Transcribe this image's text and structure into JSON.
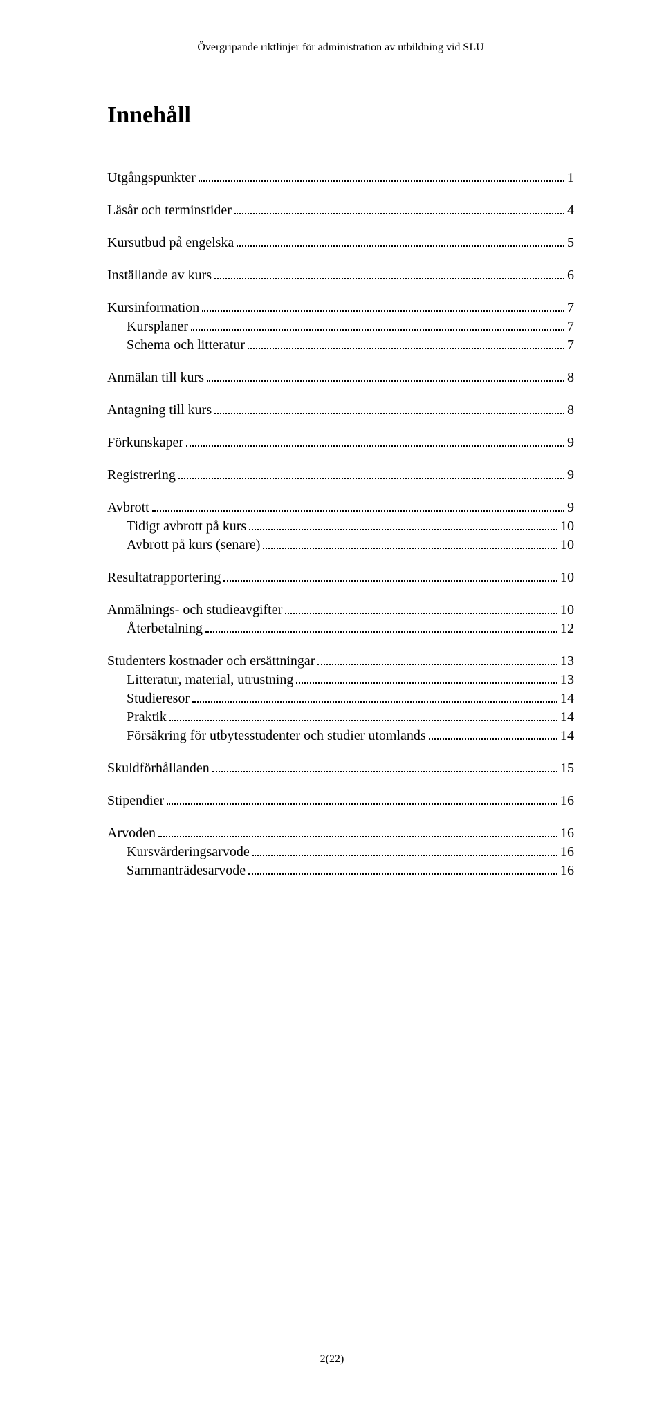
{
  "header": "Övergripande riktlinjer för administration av utbildning vid SLU",
  "title": "Innehåll",
  "toc": [
    {
      "label": "Utgångspunkter",
      "page": "1",
      "level": 0,
      "group_end": true
    },
    {
      "label": "Läsår och terminstider",
      "page": "4",
      "level": 0,
      "group_end": true
    },
    {
      "label": "Kursutbud på engelska",
      "page": "5",
      "level": 0,
      "group_end": true
    },
    {
      "label": "Inställande av kurs",
      "page": "6",
      "level": 0,
      "group_end": true
    },
    {
      "label": "Kursinformation",
      "page": "7",
      "level": 0
    },
    {
      "label": "Kursplaner",
      "page": "7",
      "level": 1
    },
    {
      "label": "Schema och litteratur",
      "page": "7",
      "level": 1,
      "group_end": true
    },
    {
      "label": "Anmälan till kurs",
      "page": "8",
      "level": 0,
      "group_end": true
    },
    {
      "label": "Antagning till kurs",
      "page": "8",
      "level": 0,
      "group_end": true
    },
    {
      "label": "Förkunskaper",
      "page": "9",
      "level": 0,
      "group_end": true
    },
    {
      "label": "Registrering",
      "page": "9",
      "level": 0,
      "group_end": true
    },
    {
      "label": "Avbrott",
      "page": "9",
      "level": 0
    },
    {
      "label": "Tidigt avbrott på kurs",
      "page": "10",
      "level": 1
    },
    {
      "label": "Avbrott på kurs (senare)",
      "page": "10",
      "level": 1,
      "group_end": true
    },
    {
      "label": "Resultatrapportering",
      "page": "10",
      "level": 0,
      "group_end": true
    },
    {
      "label": "Anmälnings- och studieavgifter",
      "page": "10",
      "level": 0
    },
    {
      "label": "Återbetalning",
      "page": "12",
      "level": 1,
      "group_end": true
    },
    {
      "label": "Studenters kostnader och ersättningar",
      "page": "13",
      "level": 0
    },
    {
      "label": "Litteratur, material, utrustning",
      "page": "13",
      "level": 1
    },
    {
      "label": "Studieresor",
      "page": "14",
      "level": 1
    },
    {
      "label": "Praktik",
      "page": "14",
      "level": 1
    },
    {
      "label": "Försäkring för utbytesstudenter och studier utomlands",
      "page": "14",
      "level": 1,
      "group_end": true
    },
    {
      "label": "Skuldförhållanden",
      "page": "15",
      "level": 0,
      "group_end": true
    },
    {
      "label": "Stipendier",
      "page": "16",
      "level": 0,
      "group_end": true
    },
    {
      "label": "Arvoden",
      "page": "16",
      "level": 0
    },
    {
      "label": "Kursvärderingsarvode",
      "page": "16",
      "level": 1
    },
    {
      "label": "Sammanträdesarvode",
      "page": "16",
      "level": 1,
      "group_end": true
    }
  ],
  "footer": "2(22)"
}
